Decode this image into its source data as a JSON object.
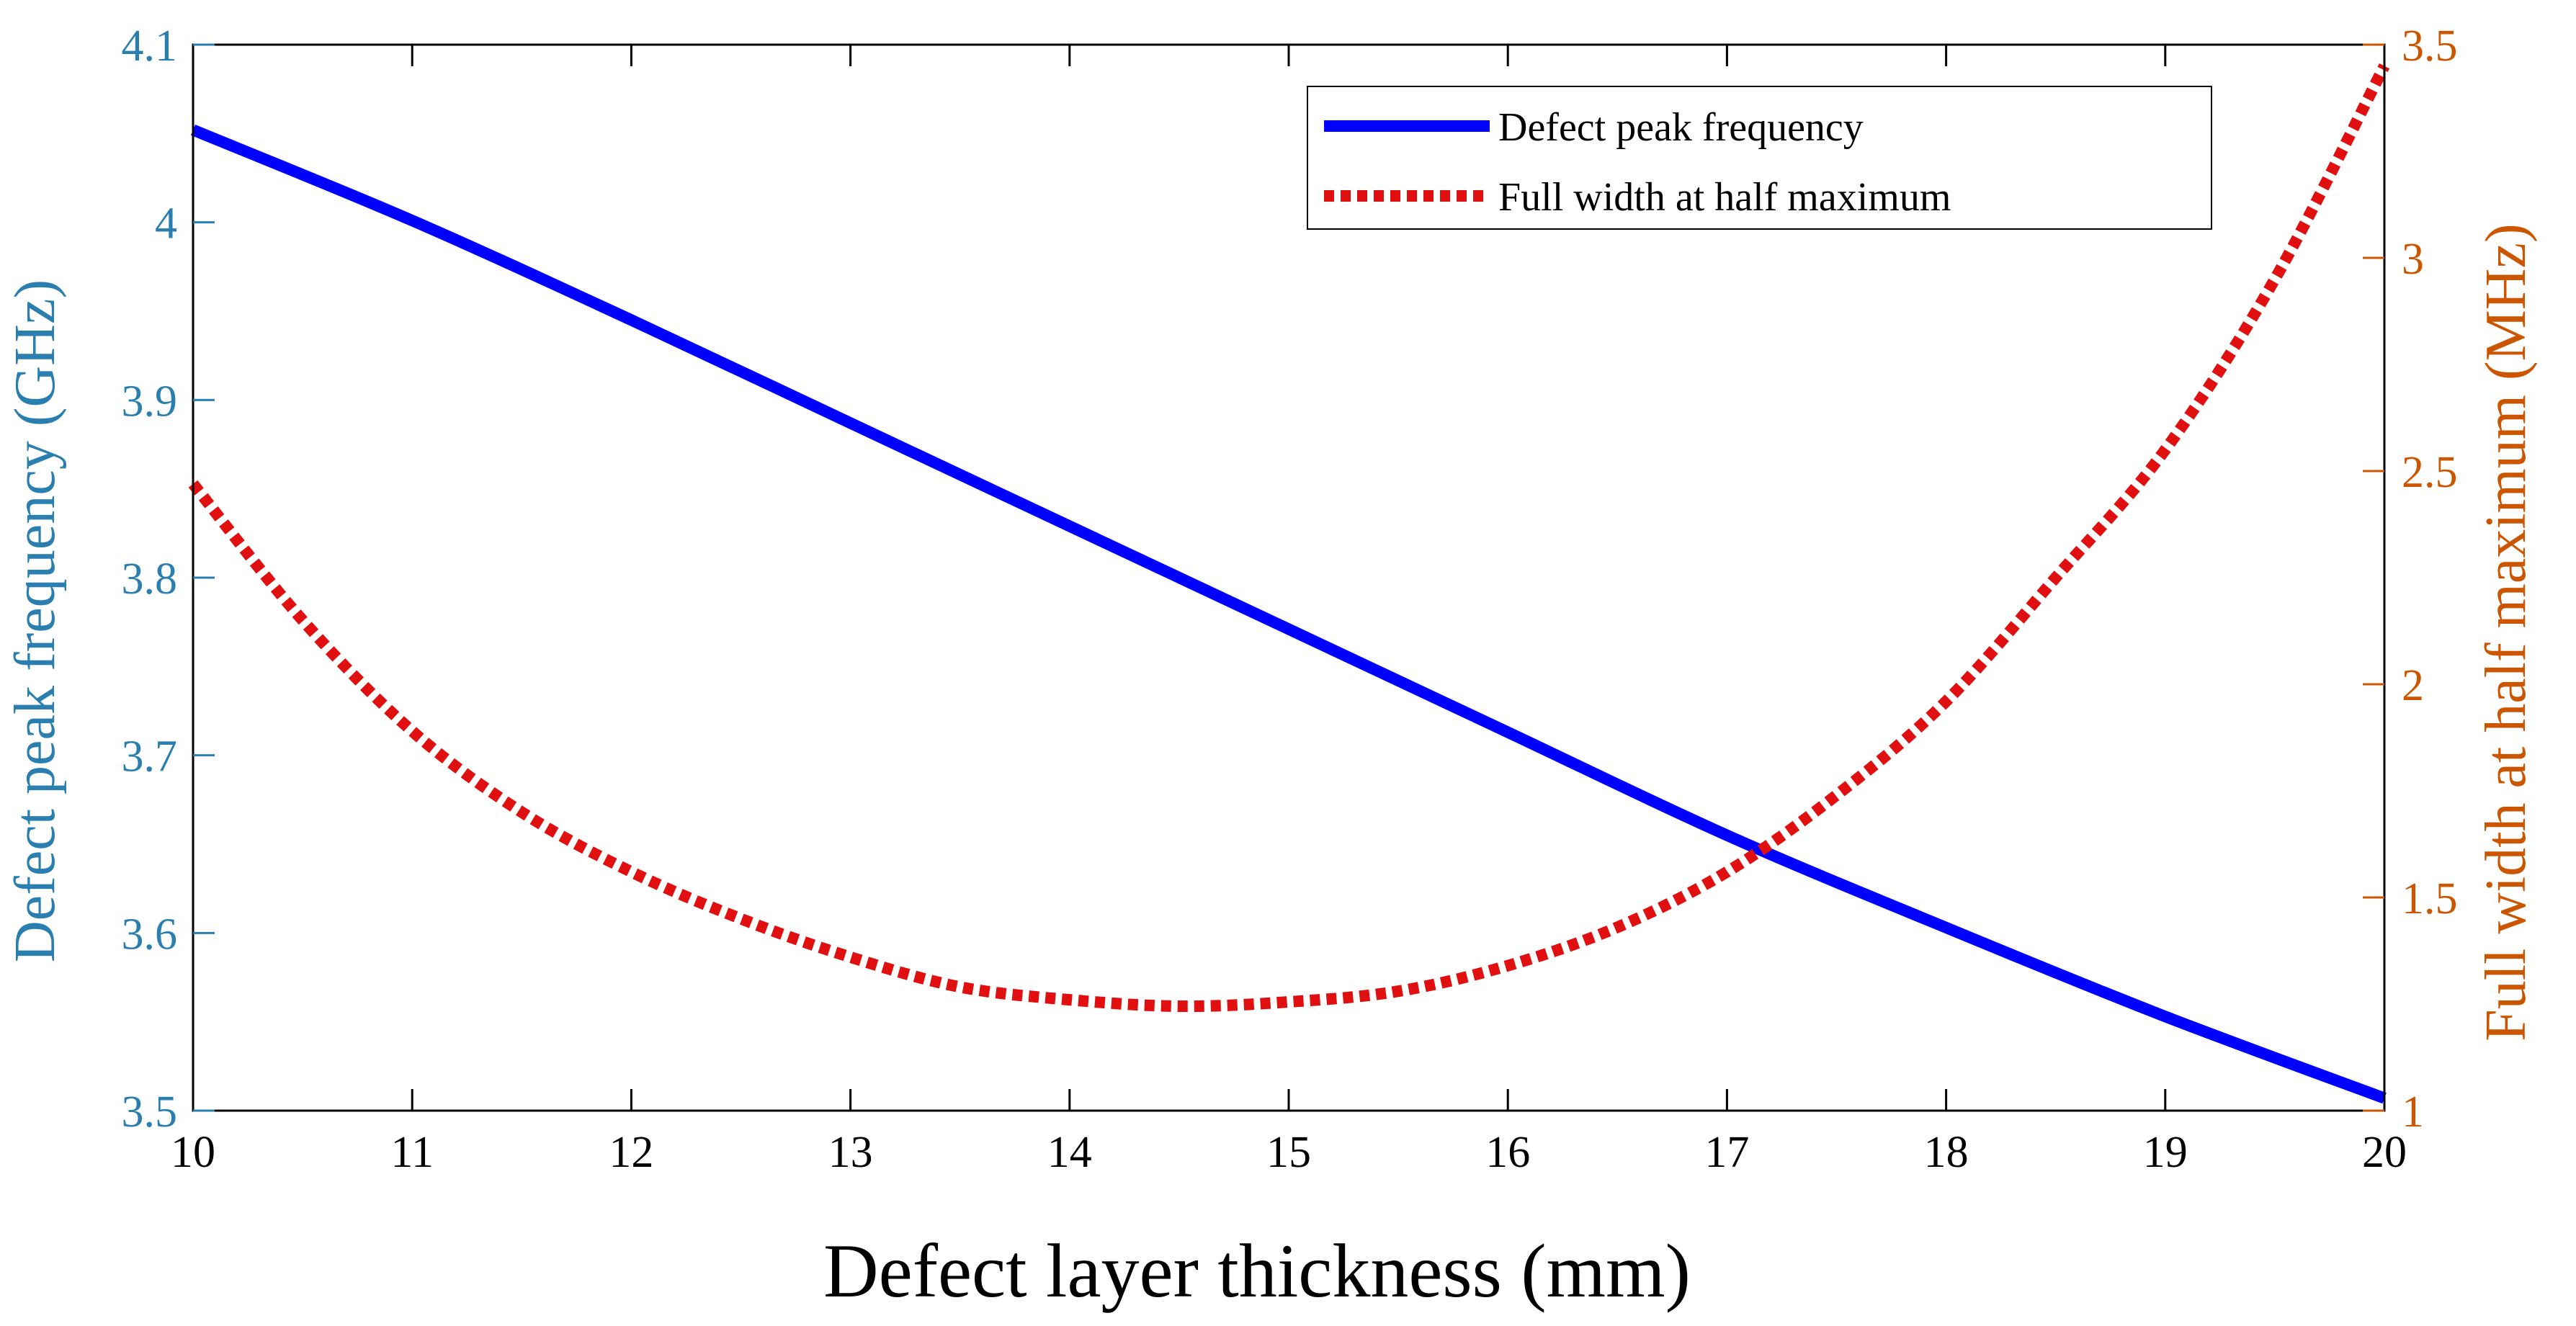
{
  "chart_data": {
    "type": "line",
    "xlabel": "Defect layer thickness (mm)",
    "ylabel_left": "Defect peak frequency (GHz)",
    "ylabel_right": "Full width at half maximum  (MHz)",
    "xlim": [
      10,
      20
    ],
    "ylim_left": [
      3.5,
      4.1
    ],
    "ylim_right": [
      1,
      3.5
    ],
    "x_ticks": [
      "10",
      "11",
      "12",
      "13",
      "14",
      "15",
      "16",
      "17",
      "18",
      "19",
      "20"
    ],
    "y_left_ticks": [
      "3.5",
      "3.6",
      "3.7",
      "3.8",
      "3.9",
      "4",
      "4.1"
    ],
    "y_right_ticks": [
      "1",
      "1.5",
      "2",
      "2.5",
      "3",
      "3.5"
    ],
    "grid": false,
    "legend_position": "top-right",
    "colors": {
      "left_axis": "#2a7fb0",
      "right_axis": "#cc5500",
      "peak_line": "#0000ff",
      "fwhm_line": "#e01010",
      "frame": "#000000"
    },
    "series": [
      {
        "name": "Defect peak frequency",
        "axis": "left",
        "style": "solid",
        "x": [
          10,
          11,
          12,
          13,
          14,
          15,
          16,
          17,
          18,
          19,
          20
        ],
        "y": [
          4.052,
          4.001,
          3.945,
          3.887,
          3.829,
          3.771,
          3.713,
          3.655,
          3.603,
          3.553,
          3.507
        ]
      },
      {
        "name": "Full width at half maximum",
        "axis": "right",
        "style": "dotted",
        "x": [
          10,
          10.5,
          11,
          11.5,
          12,
          12.5,
          13,
          13.5,
          14,
          14.5,
          15,
          15.5,
          16,
          16.5,
          17,
          17.5,
          18,
          18.5,
          19,
          19.5,
          20
        ],
        "y": [
          2.47,
          2.15,
          1.89,
          1.7,
          1.56,
          1.45,
          1.36,
          1.29,
          1.26,
          1.245,
          1.255,
          1.28,
          1.34,
          1.43,
          1.56,
          1.74,
          1.96,
          2.25,
          2.55,
          2.95,
          3.45
        ]
      }
    ]
  }
}
